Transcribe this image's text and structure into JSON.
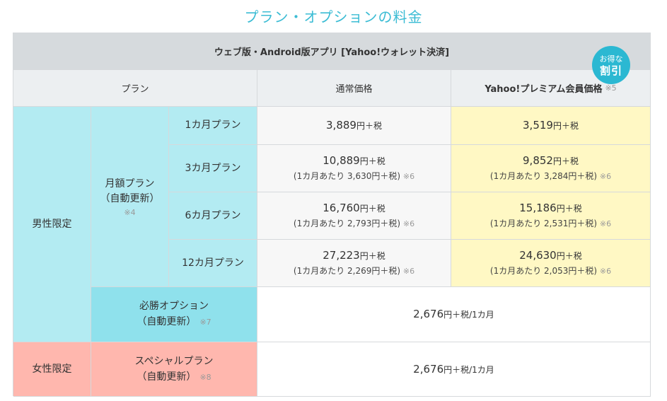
{
  "title": "プラン・オプションの料金",
  "table": {
    "top_header": "ウェブ版・Android版アプリ [Yahoo!ウォレット決済]",
    "col_plan": "プラン",
    "col_regular": "通常価格",
    "col_premium": "Yahoo!プレミアム会員価格",
    "col_premium_note": "※5",
    "badge_line1": "お得な",
    "badge_line2": "割引",
    "male_label": "男性限定",
    "female_label": "女性限定",
    "monthly_plan": {
      "line1": "月額プラン",
      "line2": "（自動更新）",
      "note": "※4"
    },
    "plans": [
      {
        "name": "1カ月プラン",
        "regular_price": "3,889",
        "regular_sub": "",
        "premium_price": "3,519",
        "premium_sub": ""
      },
      {
        "name": "3カ月プラン",
        "regular_price": "10,889",
        "regular_sub": "(1カ月あたり 3,630円＋税)",
        "premium_price": "9,852",
        "premium_sub": "(1カ月あたり 3,284円＋税)"
      },
      {
        "name": "6カ月プラン",
        "regular_price": "16,760",
        "regular_sub": "(1カ月あたり 2,793円＋税)",
        "premium_price": "15,186",
        "premium_sub": "(1カ月あたり 2,531円＋税)"
      },
      {
        "name": "12カ月プラン",
        "regular_price": "27,223",
        "regular_sub": "(1カ月あたり 2,269円＋税)",
        "premium_price": "24,630",
        "premium_sub": "(1カ月あたり 2,053円＋税)"
      }
    ],
    "yen_tax": "円＋税",
    "yen_tax_month": "円＋税/1カ月",
    "sub_note": "※6",
    "victory_option": {
      "line1": "必勝オプション",
      "line2": "（自動更新）",
      "note": "※7",
      "price": "2,676"
    },
    "special_plan": {
      "line1": "スペシャルプラン",
      "line2": "（自動更新）",
      "note": "※8",
      "price": "2,676"
    }
  },
  "colors": {
    "title": "#3bbcd4",
    "header_grey": "#d6dadd",
    "male_cyan": "#b3ebf2",
    "option_cyan": "#8fe1ec",
    "female_pink": "#ffb7ae",
    "premium_yellow": "#fff8c4",
    "badge": "#2bb8d2"
  }
}
